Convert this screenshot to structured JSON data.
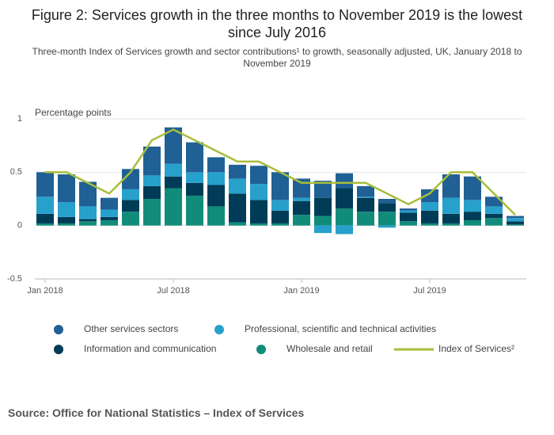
{
  "chart_data": {
    "type": "stacked-bar-line",
    "title": "Figure 2: Services growth in the three months to November 2019 is the lowest since July 2016",
    "subtitle": "Three-month Index of Services growth and sector contributions¹ to growth, seasonally adjusted, UK, January 2018 to November 2019",
    "y_label": "Percentage points",
    "source": "Source: Office for National Statistics – Index of Services",
    "categories": [
      "Jan 2018",
      null,
      null,
      null,
      null,
      null,
      "Jul 2018",
      null,
      null,
      null,
      null,
      null,
      "Jan 2019",
      null,
      null,
      null,
      null,
      null,
      "Jul 2019",
      null,
      null,
      null,
      null
    ],
    "ylim": [
      -0.5,
      1
    ],
    "yticks": [
      -0.5,
      0,
      0.5,
      1
    ],
    "grid": true,
    "series": [
      {
        "name": "Other services sectors",
        "color": "#206095",
        "values": [
          0.23,
          0.26,
          0.23,
          0.11,
          0.19,
          0.27,
          0.34,
          0.28,
          0.14,
          0.13,
          0.17,
          0.26,
          0.18,
          0.16,
          0.14,
          0.1,
          0.04,
          0.02,
          0.12,
          0.22,
          0.22,
          0.09,
          0.02
        ]
      },
      {
        "name": "Professional, scientific and technical activities",
        "color": "#27a0cc",
        "values": [
          0.16,
          0.14,
          0.12,
          0.07,
          0.1,
          0.1,
          0.12,
          0.1,
          0.12,
          0.14,
          0.15,
          0.1,
          0.03,
          -0.07,
          -0.08,
          0.01,
          -0.02,
          0.02,
          0.08,
          0.15,
          0.11,
          0.07,
          0.03
        ]
      },
      {
        "name": "Information and communication",
        "color": "#003c57",
        "values": [
          0.09,
          0.06,
          0.02,
          0.03,
          0.11,
          0.12,
          0.11,
          0.12,
          0.2,
          0.27,
          0.22,
          0.12,
          0.13,
          0.17,
          0.19,
          0.13,
          0.08,
          0.08,
          0.12,
          0.09,
          0.08,
          0.04,
          0.03
        ]
      },
      {
        "name": "Wholesale and retail",
        "color": "#118c7b",
        "values": [
          0.02,
          0.02,
          0.04,
          0.05,
          0.13,
          0.25,
          0.35,
          0.28,
          0.18,
          0.03,
          0.02,
          0.02,
          0.1,
          0.09,
          0.16,
          0.13,
          0.13,
          0.04,
          0.02,
          0.02,
          0.05,
          0.07,
          0.01
        ]
      }
    ],
    "line": {
      "name": "Index of Services²",
      "color": "#a8bd3a",
      "values": [
        0.5,
        0.5,
        0.4,
        0.3,
        0.5,
        0.8,
        0.9,
        0.8,
        0.7,
        0.6,
        0.6,
        0.5,
        0.4,
        0.4,
        0.4,
        0.4,
        0.3,
        0.2,
        0.3,
        0.5,
        0.5,
        0.3,
        0.1
      ]
    }
  }
}
